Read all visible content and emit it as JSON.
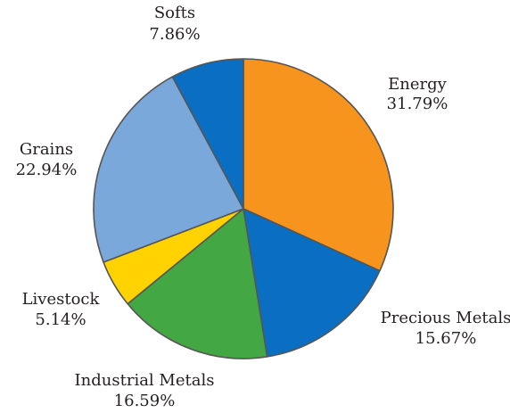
{
  "chart_data": {
    "type": "pie",
    "title": "",
    "start_angle_deg": 0,
    "direction": "clockwise",
    "slices": [
      {
        "label": "Energy",
        "percent_text": "31.79%",
        "value": 31.79,
        "color": "#F7941D"
      },
      {
        "label": "Precious Metals",
        "percent_text": "15.67%",
        "value": 15.67,
        "color": "#0A6FC2"
      },
      {
        "label": "Industrial Metals",
        "percent_text": "16.59%",
        "value": 16.59,
        "color": "#43A843"
      },
      {
        "label": "Livestock",
        "percent_text": "5.14%",
        "value": 5.14,
        "color": "#FFD200"
      },
      {
        "label": "Grains",
        "percent_text": "22.94%",
        "value": 22.94,
        "color": "#7BA8DA"
      },
      {
        "label": "Softs",
        "percent_text": "7.86%",
        "value": 7.86,
        "color": "#0A6FC2"
      }
    ],
    "edge_color": "#555555"
  }
}
